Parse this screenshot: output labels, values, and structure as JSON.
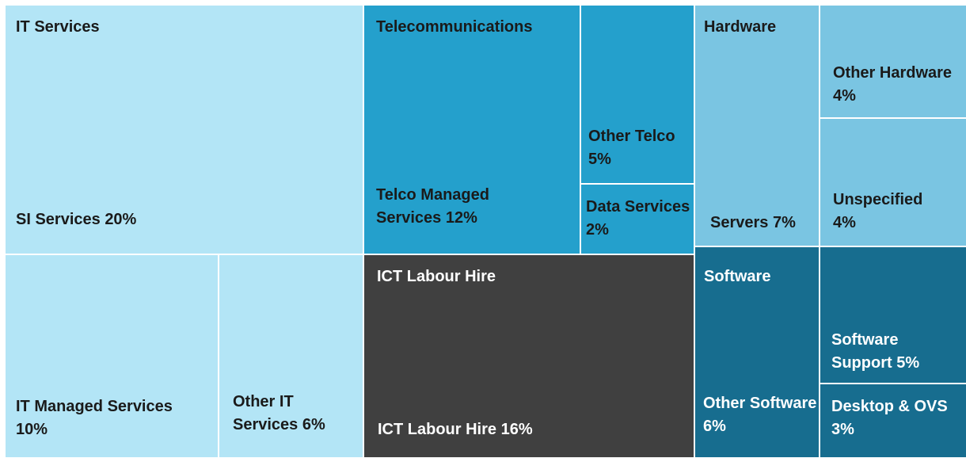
{
  "chart_data": {
    "type": "treemap",
    "groups": [
      {
        "name": "IT Services",
        "color": "#b3e5f6",
        "children": [
          {
            "name": "SI Services",
            "value": 20,
            "value_label": "20%"
          },
          {
            "name": "IT Managed Services",
            "value": 10,
            "value_label": "10%"
          },
          {
            "name": "Other IT Services",
            "value": 6,
            "value_label": "6%"
          }
        ]
      },
      {
        "name": "Telecommunications",
        "color": "#24a0cc",
        "children": [
          {
            "name": "Telco Managed Services",
            "value": 12,
            "value_label": "12%"
          },
          {
            "name": "Other Telco",
            "value": 5,
            "value_label": "5%"
          },
          {
            "name": "Data Services",
            "value": 2,
            "value_label": "2%"
          }
        ]
      },
      {
        "name": "ICT Labour Hire",
        "color": "#404040",
        "children": [
          {
            "name": "ICT Labour Hire",
            "value": 16,
            "value_label": "16%"
          }
        ]
      },
      {
        "name": "Hardware",
        "color": "#7ac5e2",
        "children": [
          {
            "name": "Servers",
            "value": 7,
            "value_label": "7%"
          },
          {
            "name": "Other Hardware",
            "value": 4,
            "value_label": "4%"
          },
          {
            "name": "Unspecified",
            "value": 4,
            "value_label": "4%"
          }
        ]
      },
      {
        "name": "Software",
        "color": "#176d8f",
        "children": [
          {
            "name": "Other Software",
            "value": 6,
            "value_label": "6%"
          },
          {
            "name": "Software Support",
            "value": 5,
            "value_label": "5%"
          },
          {
            "name": "Desktop & OVS",
            "value": 3,
            "value_label": "3%"
          }
        ]
      }
    ]
  }
}
